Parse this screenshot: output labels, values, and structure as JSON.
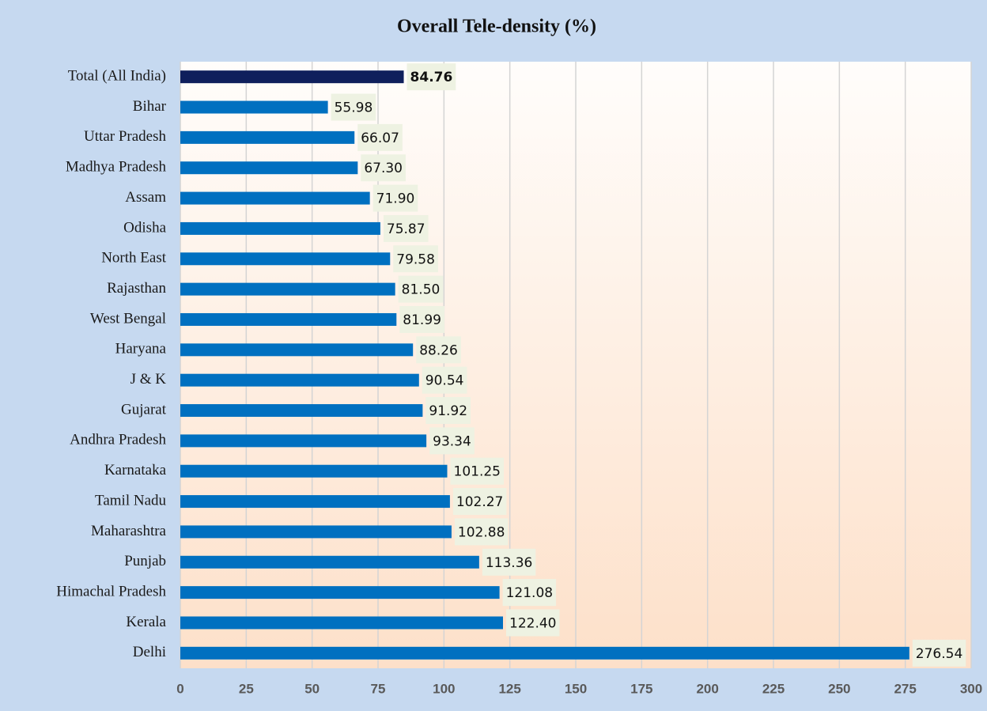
{
  "chart_data": {
    "type": "bar",
    "orientation": "horizontal",
    "title": "Overall Tele-density (%)",
    "categories": [
      "Total (All India)",
      "Bihar",
      "Uttar Pradesh",
      "Madhya Pradesh",
      "Assam",
      "Odisha",
      "North East",
      "Rajasthan",
      "West Bengal",
      "Haryana",
      "J & K",
      "Gujarat",
      "Andhra Pradesh",
      "Karnataka",
      "Tamil Nadu",
      "Maharashtra",
      "Punjab",
      "Himachal Pradesh",
      "Kerala",
      "Delhi"
    ],
    "values": [
      84.76,
      55.98,
      66.07,
      67.3,
      71.9,
      75.87,
      79.58,
      81.5,
      81.99,
      88.26,
      90.54,
      91.92,
      93.34,
      101.25,
      102.27,
      102.88,
      113.36,
      121.08,
      122.4,
      276.54
    ],
    "value_labels": [
      "84.76",
      "55.98",
      "66.07",
      "67.30",
      "71.90",
      "75.87",
      "79.58",
      "81.50",
      "81.99",
      "88.26",
      "90.54",
      "91.92",
      "93.34",
      "101.25",
      "102.27",
      "102.88",
      "113.36",
      "121.08",
      "122.40",
      "276.54"
    ],
    "color": "#0070c0",
    "colors": [
      "#0f1f5c",
      "#0070c0",
      "#0070c0",
      "#0070c0",
      "#0070c0",
      "#0070c0",
      "#0070c0",
      "#0070c0",
      "#0070c0",
      "#0070c0",
      "#0070c0",
      "#0070c0",
      "#0070c0",
      "#0070c0",
      "#0070c0",
      "#0070c0",
      "#0070c0",
      "#0070c0",
      "#0070c0",
      "#0070c0"
    ],
    "xlim": [
      0,
      300
    ],
    "xticks": [
      0,
      25,
      50,
      75,
      100,
      125,
      150,
      175,
      200,
      225,
      250,
      275,
      300
    ],
    "grid": true
  }
}
